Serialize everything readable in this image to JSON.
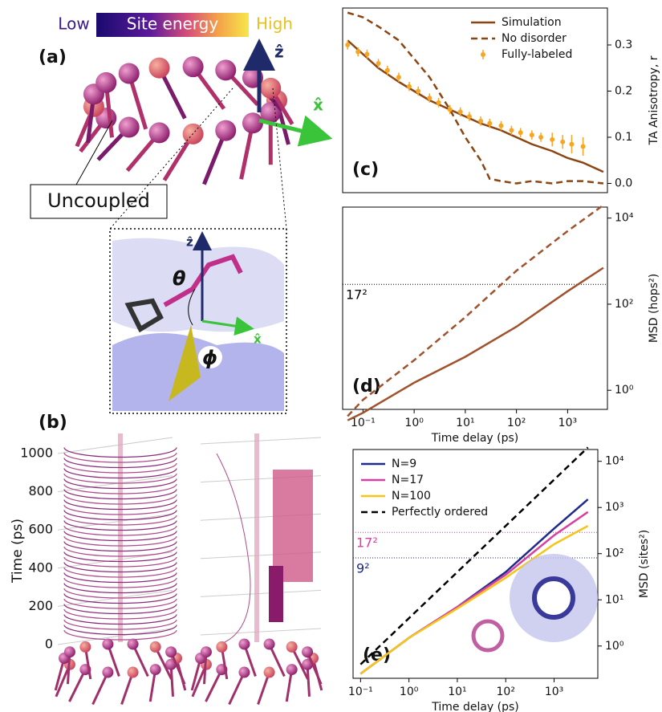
{
  "figure": {
    "colorbar": {
      "low": "Low",
      "label": "Site energy",
      "high": "High"
    },
    "panel_a": {
      "label": "(a)",
      "z_axis": "ẑ",
      "x_axis": "x̂",
      "callout": "Uncoupled",
      "inset": {
        "z_axis": "ẑ",
        "x_axis": "x̂",
        "theta": "θ",
        "phi": "ϕ"
      }
    },
    "panel_b": {
      "label": "(b)",
      "ylabel": "Time (ps)",
      "ylim": [
        0,
        1000
      ],
      "yticks": [
        0,
        200,
        400,
        600,
        800,
        1000
      ]
    }
  },
  "chart_data": [
    {
      "type": "line",
      "panel": "(c)",
      "ylabel": "TA Anisotropy, r",
      "xlog": true,
      "ylog": false,
      "xlim": [
        0.04,
        6000
      ],
      "ylim": [
        -0.02,
        0.38
      ],
      "xticks": [],
      "yticks": [
        {
          "value": 0,
          "label": "0.0"
        },
        0.1,
        0.2,
        0.3
      ],
      "legend": "upper right",
      "series": [
        {
          "name": "Simulation",
          "color": "#8b4513",
          "dash": "solid",
          "x": [
            0.05,
            0.1,
            0.2,
            0.5,
            1,
            2,
            5,
            10,
            20,
            50,
            100,
            200,
            500,
            1000,
            2000,
            5000
          ],
          "values": [
            0.31,
            0.28,
            0.25,
            0.22,
            0.2,
            0.18,
            0.16,
            0.145,
            0.13,
            0.115,
            0.1,
            0.085,
            0.07,
            0.055,
            0.045,
            0.025
          ]
        },
        {
          "name": "No disorder",
          "color": "#8b4513",
          "dash": "dashed",
          "x": [
            0.05,
            0.1,
            0.2,
            0.5,
            1,
            2,
            5,
            10,
            20,
            30,
            50,
            100,
            200,
            500,
            1000,
            2000,
            5000
          ],
          "values": [
            0.37,
            0.36,
            0.34,
            0.31,
            0.27,
            0.23,
            0.16,
            0.1,
            0.05,
            0.01,
            0.005,
            0.0,
            0.005,
            0.0,
            0.005,
            0.005,
            0.0
          ]
        },
        {
          "name": "Fully-labeled",
          "color": "#f5a623",
          "dash": "errorbar",
          "x": [
            0.05,
            0.08,
            0.12,
            0.2,
            0.3,
            0.5,
            0.8,
            1.2,
            2,
            3,
            5,
            8,
            12,
            20,
            30,
            50,
            80,
            120,
            200,
            300,
            500,
            800,
            1200,
            2000
          ],
          "values": [
            0.3,
            0.285,
            0.28,
            0.26,
            0.245,
            0.23,
            0.21,
            0.2,
            0.185,
            0.175,
            0.16,
            0.155,
            0.145,
            0.135,
            0.13,
            0.125,
            0.115,
            0.11,
            0.105,
            0.1,
            0.095,
            0.09,
            0.085,
            0.08
          ],
          "errors": [
            0.01,
            0.01,
            0.01,
            0.01,
            0.01,
            0.01,
            0.01,
            0.01,
            0.01,
            0.01,
            0.01,
            0.01,
            0.01,
            0.01,
            0.01,
            0.01,
            0.01,
            0.01,
            0.01,
            0.01,
            0.015,
            0.015,
            0.02,
            0.02
          ]
        }
      ]
    },
    {
      "type": "line",
      "panel": "(d)",
      "ylabel": "MSD (hops²)",
      "xlabel": "Time delay (ps)",
      "xlog": true,
      "ylog": true,
      "xlim": [
        0.04,
        6000
      ],
      "ylim": [
        0.36,
        18000
      ],
      "xticks": [
        {
          "value": 0.1,
          "label": "10⁻¹"
        },
        {
          "value": 1,
          "label": "10⁰"
        },
        {
          "value": 10,
          "label": "10¹"
        },
        {
          "value": 100,
          "label": "10²"
        },
        {
          "value": 1000,
          "label": "10³"
        }
      ],
      "yticks": [
        {
          "value": 1,
          "label": "10⁰"
        },
        {
          "value": 100,
          "label": "10²"
        },
        {
          "value": 10000,
          "label": "10⁴"
        }
      ],
      "hlines": [
        {
          "label": "17²",
          "value": 289,
          "color": "#000000"
        }
      ],
      "series": [
        {
          "name": "Simulation",
          "color": "#a0522d",
          "dash": "solid",
          "x": [
            0.05,
            0.1,
            1,
            10,
            100,
            1000,
            5000
          ],
          "values": [
            0.2,
            0.3,
            1.5,
            6,
            30,
            200,
            700
          ]
        },
        {
          "name": "No disorder",
          "color": "#a0522d",
          "dash": "dashed",
          "x": [
            0.05,
            0.1,
            1,
            10,
            100,
            1000,
            5000
          ],
          "values": [
            0.25,
            0.6,
            5,
            50,
            600,
            5000,
            20000
          ]
        }
      ]
    },
    {
      "type": "line",
      "panel": "(e)",
      "ylabel": "MSD (sites²)",
      "xlabel": "Time delay (ps)",
      "xlog": true,
      "ylog": true,
      "xlim": [
        0.07,
        8000
      ],
      "ylim": [
        0.2,
        18000
      ],
      "legend": "upper left",
      "xticks": [
        {
          "value": 0.1,
          "label": "10⁻¹"
        },
        {
          "value": 1,
          "label": "10⁰"
        },
        {
          "value": 10,
          "label": "10¹"
        },
        {
          "value": 100,
          "label": "10²"
        },
        {
          "value": 1000,
          "label": "10³"
        }
      ],
      "yticks": [
        {
          "value": 1,
          "label": "10⁰"
        },
        {
          "value": 10,
          "label": "10¹"
        },
        {
          "value": 100,
          "label": "10²"
        },
        {
          "value": 1000,
          "label": "10³"
        },
        {
          "value": 10000,
          "label": "10⁴"
        }
      ],
      "hlines": [
        {
          "label": "17²",
          "value": 289,
          "color": "#d6409f"
        },
        {
          "label": "9²",
          "value": 81,
          "color": "#1f2a8a"
        }
      ],
      "series": [
        {
          "name": "N=9",
          "color": "#1f2a8a",
          "dash": "solid",
          "x": [
            0.1,
            1,
            10,
            100,
            1000,
            5000
          ],
          "values": [
            0.25,
            1.5,
            7,
            40,
            350,
            1500
          ]
        },
        {
          "name": "N=17",
          "color": "#d6409f",
          "dash": "solid",
          "x": [
            0.1,
            1,
            10,
            100,
            1000,
            5000
          ],
          "values": [
            0.25,
            1.5,
            7,
            35,
            250,
            800
          ]
        },
        {
          "name": "N=100",
          "color": "#f5c518",
          "dash": "solid",
          "x": [
            0.1,
            1,
            10,
            100,
            1000,
            5000
          ],
          "values": [
            0.25,
            1.5,
            6.5,
            30,
            160,
            400
          ]
        },
        {
          "name": "Perfectly ordered",
          "color": "#000000",
          "dash": "dashed",
          "x": [
            0.1,
            1,
            10,
            100,
            1000,
            5000
          ],
          "values": [
            0.4,
            4,
            40,
            400,
            4000,
            20000
          ]
        }
      ]
    }
  ]
}
